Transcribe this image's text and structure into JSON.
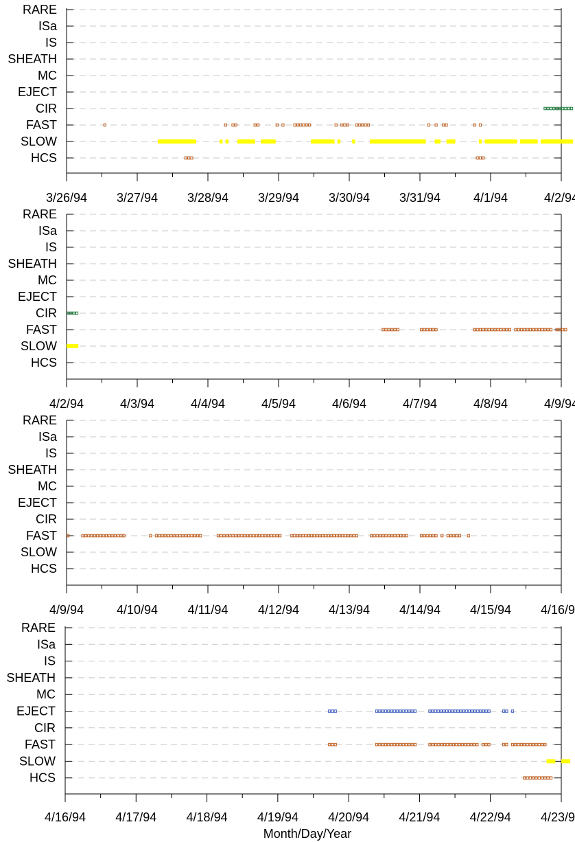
{
  "chart_data": {
    "type": "scatter",
    "xlabel": "Month/Day/Year",
    "categories": [
      "RARE",
      "ISa",
      "IS",
      "SHEATH",
      "MC",
      "EJECT",
      "CIR",
      "FAST",
      "SLOW",
      "HCS"
    ],
    "grid": "dashed horizontal lines",
    "colors": {
      "SLOW": "#ffff00",
      "FAST": "#c06020",
      "CIR": "#208040",
      "HCS": "#c06020",
      "EJECT": "#4060c0"
    },
    "panels": [
      {
        "xticks": [
          "3/26/94",
          "3/27/94",
          "3/28/94",
          "3/29/94",
          "3/30/94",
          "3/31/94",
          "4/1/94",
          "4/2/94"
        ],
        "xlim": [
          "1994-03-26",
          "1994-04-02"
        ],
        "series": [
          {
            "category": "CIR",
            "style": "open",
            "intervals": [
              [
                "1994-04-01 18:00",
                "1994-04-02 04:00"
              ]
            ]
          },
          {
            "category": "FAST",
            "style": "open",
            "intervals": [
              [
                "1994-03-26 12:30",
                "1994-03-26 13:30"
              ],
              [
                "1994-03-28 05:30",
                "1994-03-28 06:30"
              ],
              [
                "1994-03-28 08:00",
                "1994-03-28 10:00"
              ],
              [
                "1994-03-28 15:30",
                "1994-03-28 17:30"
              ],
              [
                "1994-03-28 23:00",
                "1994-03-29 00:00"
              ],
              [
                "1994-03-29 01:00",
                "1994-03-29 02:00"
              ],
              [
                "1994-03-29 05:00",
                "1994-03-29 11:00"
              ],
              [
                "1994-03-29 19:00",
                "1994-03-29 20:00"
              ],
              [
                "1994-03-29 21:00",
                "1994-03-30 00:00"
              ],
              [
                "1994-03-30 02:00",
                "1994-03-30 07:00"
              ],
              [
                "1994-03-31 02:30",
                "1994-03-31 03:30"
              ],
              [
                "1994-03-31 05:00",
                "1994-03-31 06:00"
              ],
              [
                "1994-03-31 07:30",
                "1994-03-31 09:30"
              ],
              [
                "1994-03-31 18:00",
                "1994-03-31 19:00"
              ],
              [
                "1994-03-31 20:00",
                "1994-03-31 21:00"
              ]
            ]
          },
          {
            "category": "SLOW",
            "style": "filled",
            "intervals": [
              [
                "1994-03-27 07:00",
                "1994-03-27 20:00"
              ],
              [
                "1994-03-28 04:00",
                "1994-03-28 05:00"
              ],
              [
                "1994-03-28 06:00",
                "1994-03-28 07:00"
              ],
              [
                "1994-03-28 10:00",
                "1994-03-28 16:00"
              ],
              [
                "1994-03-28 18:00",
                "1994-03-28 23:00"
              ],
              [
                "1994-03-29 11:00",
                "1994-03-29 19:00"
              ],
              [
                "1994-03-29 20:00",
                "1994-03-29 21:00"
              ],
              [
                "1994-03-30 01:00",
                "1994-03-30 02:00"
              ],
              [
                "1994-03-30 07:00",
                "1994-03-31 02:00"
              ],
              [
                "1994-03-31 05:00",
                "1994-03-31 07:00"
              ],
              [
                "1994-03-31 09:00",
                "1994-03-31 12:00"
              ],
              [
                "1994-03-31 20:00",
                "1994-03-31 21:00"
              ],
              [
                "1994-03-31 22:00",
                "1994-04-01 09:00"
              ],
              [
                "1994-04-01 10:00",
                "1994-04-01 16:00"
              ],
              [
                "1994-04-01 17:00",
                "1994-04-02 04:00"
              ]
            ]
          },
          {
            "category": "HCS",
            "style": "open",
            "intervals": [
              [
                "1994-03-27 16:00",
                "1994-03-27 19:00"
              ],
              [
                "1994-03-31 19:00",
                "1994-03-31 22:00"
              ]
            ]
          }
        ]
      },
      {
        "xticks": [
          "4/2/94",
          "4/3/94",
          "4/4/94",
          "4/5/94",
          "4/6/94",
          "4/7/94",
          "4/8/94",
          "4/9/94"
        ],
        "xlim": [
          "1994-04-02",
          "1994-04-09"
        ],
        "series": [
          {
            "category": "CIR",
            "style": "open",
            "intervals": [
              [
                "1994-04-02 00:00",
                "1994-04-02 04:00"
              ]
            ]
          },
          {
            "category": "SLOW",
            "style": "filled",
            "intervals": [
              [
                "1994-04-02 00:00",
                "1994-04-02 04:00"
              ]
            ]
          },
          {
            "category": "FAST",
            "style": "open",
            "intervals": [
              [
                "1994-04-06 11:00",
                "1994-04-06 17:00"
              ],
              [
                "1994-04-07 00:00",
                "1994-04-07 06:00"
              ],
              [
                "1994-04-07 18:00",
                "1994-04-08 07:00"
              ],
              [
                "1994-04-08 08:00",
                "1994-04-08 21:00"
              ],
              [
                "1994-04-08 22:00",
                "1994-04-09 02:00"
              ]
            ]
          }
        ]
      },
      {
        "xticks": [
          "4/9/94",
          "4/10/94",
          "4/11/94",
          "4/12/94",
          "4/13/94",
          "4/14/94",
          "4/15/94",
          "4/16/94"
        ],
        "xlim": [
          "1994-04-09",
          "1994-04-16"
        ],
        "series": [
          {
            "category": "FAST",
            "style": "open",
            "intervals": [
              [
                "1994-04-09 00:00",
                "1994-04-09 01:00"
              ],
              [
                "1994-04-09 05:00",
                "1994-04-09 20:00"
              ],
              [
                "1994-04-10 04:00",
                "1994-04-10 05:00"
              ],
              [
                "1994-04-10 06:00",
                "1994-04-10 22:00"
              ],
              [
                "1994-04-11 03:00",
                "1994-04-12 01:00"
              ],
              [
                "1994-04-12 04:00",
                "1994-04-13 03:00"
              ],
              [
                "1994-04-13 07:00",
                "1994-04-13 20:00"
              ],
              [
                "1994-04-13 24:00",
                "1994-04-14 06:00"
              ],
              [
                "1994-04-14 07:00",
                "1994-04-14 08:00"
              ],
              [
                "1994-04-14 09:00",
                "1994-04-14 14:00"
              ],
              [
                "1994-04-14 16:00",
                "1994-04-14 17:00"
              ]
            ]
          }
        ]
      },
      {
        "xticks": [
          "4/16/94",
          "4/17/94",
          "4/18/94",
          "4/19/94",
          "4/20/94",
          "4/21/94",
          "4/22/94",
          "4/23/94"
        ],
        "xlim": [
          "1994-04-16",
          "1994-04-23"
        ],
        "series": [
          {
            "category": "EJECT",
            "style": "open",
            "intervals": [
              [
                "1994-04-19 17:00",
                "1994-04-19 20:00"
              ],
              [
                "1994-04-20 09:00",
                "1994-04-20 23:00"
              ],
              [
                "1994-04-21 03:00",
                "1994-04-21 24:00"
              ],
              [
                "1994-04-22 04:00",
                "1994-04-22 06:00"
              ],
              [
                "1994-04-22 07:00",
                "1994-04-22 08:00"
              ]
            ]
          },
          {
            "category": "FAST",
            "style": "open",
            "intervals": [
              [
                "1994-04-19 17:00",
                "1994-04-19 20:00"
              ],
              [
                "1994-04-20 09:00",
                "1994-04-20 23:00"
              ],
              [
                "1994-04-21 03:00",
                "1994-04-21 20:00"
              ],
              [
                "1994-04-21 21:00",
                "1994-04-22 00:00"
              ],
              [
                "1994-04-22 04:00",
                "1994-04-22 06:00"
              ],
              [
                "1994-04-22 07:00",
                "1994-04-22 19:00"
              ]
            ]
          },
          {
            "category": "SLOW",
            "style": "filled",
            "intervals": [
              [
                "1994-04-22 19:00",
                "1994-04-22 22:00"
              ],
              [
                "1994-04-23 00:00",
                "1994-04-23 03:00"
              ]
            ]
          },
          {
            "category": "HCS",
            "style": "open",
            "intervals": [
              [
                "1994-04-22 11:00",
                "1994-04-22 21:00"
              ]
            ]
          }
        ]
      }
    ]
  }
}
